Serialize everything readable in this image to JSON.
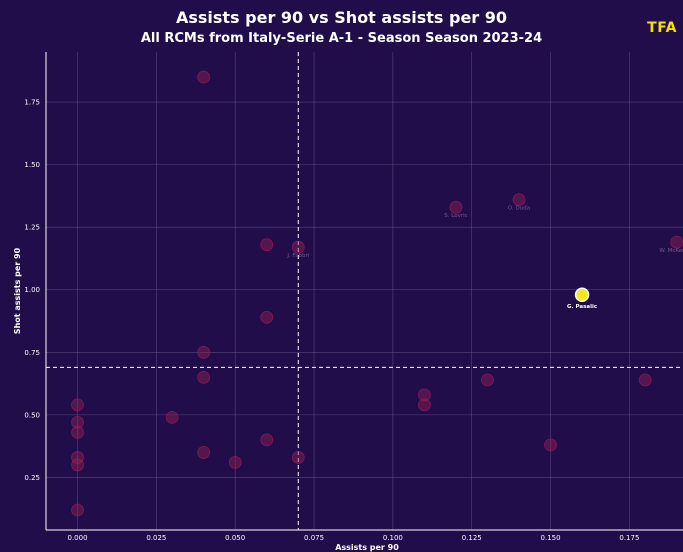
{
  "header": {
    "title": "Assists per 90 vs Shot assists per 90",
    "subtitle": "All RCMs from Italy-Serie A-1 - Season Season 2023-24",
    "brand": "TFA"
  },
  "colors": {
    "background": "#200d4a",
    "grid": "#6a5a8c",
    "point": "#9c1e55",
    "highlight": "#f5e71a",
    "label": "#7b5a8e",
    "text": "#ffffff"
  },
  "chart_data": {
    "type": "scatter",
    "title": "Assists per 90 vs Shot assists per 90",
    "subtitle": "All RCMs from Italy-Serie A-1 - Season Season 2023-24",
    "xlabel": "Assists per 90",
    "ylabel": "Shot assists per 90",
    "xlim": [
      -0.01,
      0.192
    ],
    "ylim": [
      0.04,
      1.95
    ],
    "x_ticks": [
      "0.000",
      "0.025",
      "0.050",
      "0.075",
      "0.100",
      "0.125",
      "0.150",
      "0.175"
    ],
    "y_ticks": [
      "0.25",
      "0.50",
      "0.75",
      "1.00",
      "1.25",
      "1.50",
      "1.75"
    ],
    "x_tick_values": [
      0,
      0.025,
      0.05,
      0.075,
      0.1,
      0.125,
      0.15,
      0.175
    ],
    "y_tick_values": [
      0.25,
      0.5,
      0.75,
      1.0,
      1.25,
      1.5,
      1.75
    ],
    "grid": true,
    "reference_lines": {
      "x": 0.07,
      "y": 0.69
    },
    "points": [
      {
        "x": 0.04,
        "y": 1.85
      },
      {
        "x": 0.06,
        "y": 1.18
      },
      {
        "x": 0.07,
        "y": 1.17,
        "label": "J. Fabbri"
      },
      {
        "x": 0.06,
        "y": 0.89
      },
      {
        "x": 0.04,
        "y": 0.75
      },
      {
        "x": 0.04,
        "y": 0.65
      },
      {
        "x": 0.0,
        "y": 0.54
      },
      {
        "x": 0.0,
        "y": 0.47
      },
      {
        "x": 0.0,
        "y": 0.43
      },
      {
        "x": 0.03,
        "y": 0.49
      },
      {
        "x": 0.06,
        "y": 0.4
      },
      {
        "x": 0.04,
        "y": 0.35
      },
      {
        "x": 0.05,
        "y": 0.31
      },
      {
        "x": 0.07,
        "y": 0.33
      },
      {
        "x": 0.0,
        "y": 0.33
      },
      {
        "x": 0.0,
        "y": 0.3
      },
      {
        "x": 0.0,
        "y": 0.12
      },
      {
        "x": 0.12,
        "y": 1.33,
        "label": "S. Lovric"
      },
      {
        "x": 0.14,
        "y": 1.36,
        "label": "O. Duda"
      },
      {
        "x": 0.19,
        "y": 1.19,
        "label": "W. McKennie"
      },
      {
        "x": 0.16,
        "y": 0.98,
        "label": "G. Pasalic",
        "highlight": true
      },
      {
        "x": 0.11,
        "y": 0.58
      },
      {
        "x": 0.11,
        "y": 0.54
      },
      {
        "x": 0.13,
        "y": 0.64
      },
      {
        "x": 0.18,
        "y": 0.64
      },
      {
        "x": 0.15,
        "y": 0.38
      }
    ]
  }
}
